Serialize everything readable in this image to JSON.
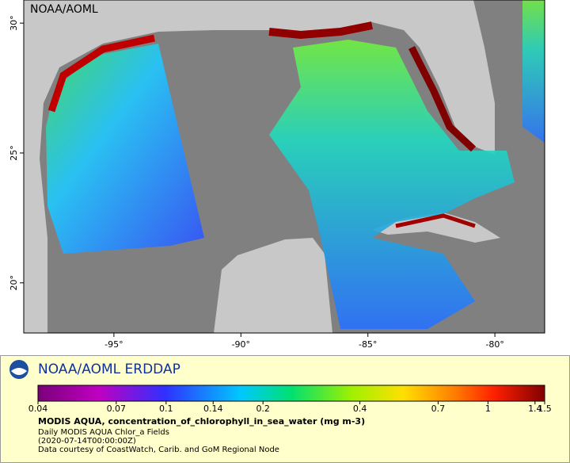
{
  "map": {
    "watermark": "NOAA/AOML",
    "lonlim": [
      -98.55,
      -78.04
    ],
    "latlim": [
      18.07,
      30.89
    ],
    "lon_ticks": [
      {
        "value": -95,
        "label": "-95°"
      },
      {
        "value": -90,
        "label": "-90°"
      },
      {
        "value": -85,
        "label": "-85°"
      },
      {
        "value": -80,
        "label": "-80°"
      }
    ],
    "lat_ticks": [
      {
        "value": 30,
        "label": "30°"
      },
      {
        "value": 25,
        "label": "25°"
      },
      {
        "value": 20,
        "label": "20°"
      }
    ]
  },
  "footer": {
    "brand": "NOAA/AOML ERDDAP",
    "colorbar": {
      "scale": "log",
      "lim": [
        0.04,
        1.5
      ],
      "ticks": [
        0.04,
        0.07,
        0.1,
        0.14,
        0.2,
        0.4,
        0.7,
        1,
        1.4,
        1.5
      ]
    },
    "title": "MODIS AQUA, concentration_of_chlorophyll_in_sea_water (mg m-3)",
    "lines": [
      "Daily MODIS AQUA Chlor_a Fields",
      "(2020-07-14T00:00:00Z)",
      "Data courtesy of CoastWatch, Carib. and GoM Regional Node"
    ]
  }
}
